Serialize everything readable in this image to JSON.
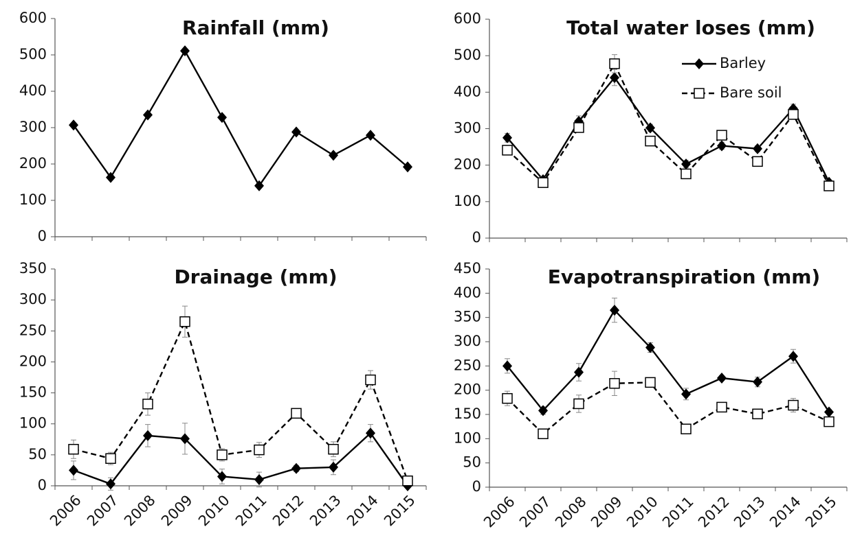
{
  "chart_data": [
    {
      "type": "line",
      "title": "Rainfall (mm)",
      "categories": [
        null,
        null,
        null,
        null,
        null,
        null,
        null,
        null,
        null,
        null
      ],
      "series": [
        {
          "color": "#000000",
          "dash": false,
          "marker": "diamond",
          "values": [
            307,
            163,
            335,
            511,
            328,
            140,
            288,
            224,
            279,
            192
          ]
        }
      ],
      "ylim": [
        0,
        600
      ],
      "yticks": [
        0,
        100,
        200,
        300,
        400,
        500,
        600
      ],
      "legend": false
    },
    {
      "type": "line",
      "title": "Total water loses (mm)",
      "categories": [
        null,
        null,
        null,
        null,
        null,
        null,
        null,
        null,
        null,
        null
      ],
      "series": [
        {
          "name": "Barley",
          "color": "#000000",
          "dash": false,
          "marker": "diamond",
          "values": [
            275,
            160,
            320,
            440,
            302,
            203,
            253,
            245,
            355,
            153
          ],
          "errors": [
            12,
            8,
            15,
            22,
            10,
            10,
            10,
            8,
            12,
            6
          ]
        },
        {
          "name": "Bare soil",
          "color": "#000000",
          "dash": true,
          "marker": "square",
          "values": [
            241,
            152,
            303,
            478,
            266,
            176,
            282,
            210,
            339,
            143
          ],
          "errors": [
            10,
            6,
            12,
            25,
            10,
            8,
            8,
            8,
            10,
            6
          ]
        }
      ],
      "ylim": [
        0,
        600
      ],
      "yticks": [
        0,
        100,
        200,
        300,
        400,
        500,
        600
      ],
      "legend": "top-right"
    },
    {
      "type": "line",
      "title": "Drainage (mm)",
      "categories": [
        "2006",
        "2007",
        "2008",
        "2009",
        "2010",
        "2011",
        "2012",
        "2013",
        "2014",
        "2015"
      ],
      "series": [
        {
          "color": "#000000",
          "dash": false,
          "marker": "diamond",
          "values": [
            25,
            3,
            81,
            76,
            15,
            10,
            28,
            30,
            85,
            0
          ],
          "errors": [
            15,
            10,
            18,
            25,
            12,
            12,
            5,
            12,
            14,
            2
          ]
        },
        {
          "color": "#000000",
          "dash": true,
          "marker": "square",
          "values": [
            59,
            44,
            132,
            265,
            50,
            58,
            117,
            59,
            171,
            8
          ],
          "errors": [
            15,
            10,
            18,
            25,
            10,
            12,
            5,
            12,
            15,
            5
          ]
        }
      ],
      "ylim": [
        0,
        350
      ],
      "yticks": [
        0,
        50,
        100,
        150,
        200,
        250,
        300,
        350
      ],
      "legend": false
    },
    {
      "type": "line",
      "title": "Evapotranspiration (mm)",
      "categories": [
        "2006",
        "2007",
        "2008",
        "2009",
        "2010",
        "2011",
        "2012",
        "2013",
        "2014",
        "2015"
      ],
      "series": [
        {
          "color": "#000000",
          "dash": false,
          "marker": "diamond",
          "values": [
            250,
            158,
            237,
            365,
            288,
            192,
            225,
            217,
            270,
            155
          ],
          "errors": [
            15,
            8,
            18,
            25,
            10,
            12,
            5,
            10,
            14,
            5
          ]
        },
        {
          "color": "#000000",
          "dash": true,
          "marker": "square",
          "values": [
            183,
            110,
            172,
            214,
            216,
            120,
            165,
            151,
            169,
            135
          ],
          "errors": [
            15,
            10,
            18,
            25,
            8,
            8,
            5,
            10,
            14,
            6
          ]
        }
      ],
      "ylim": [
        0,
        450
      ],
      "yticks": [
        0,
        50,
        100,
        150,
        200,
        250,
        300,
        350,
        400,
        450
      ],
      "legend": false
    }
  ]
}
